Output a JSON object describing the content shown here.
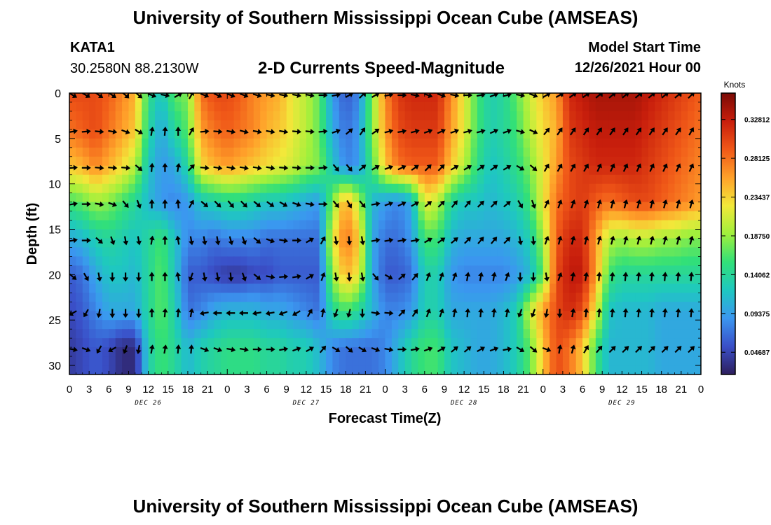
{
  "header": {
    "title": "University of Southern Mississippi Ocean Cube (AMSEAS)",
    "station": "KATA1",
    "coords": "30.2580N  88.2130W",
    "subtitle": "2-D Currents Speed-Magnitude",
    "model_start_label": "Model Start Time",
    "model_start_value": "12/26/2021 Hour 00"
  },
  "footer": {
    "title": "University of Southern Mississippi Ocean Cube (AMSEAS)"
  },
  "colors": {
    "colormap": [
      "#2d1e5c",
      "#3a4fc8",
      "#3b97f0",
      "#1ec8c0",
      "#32e078",
      "#a0f03c",
      "#f2e83a",
      "#ffa12a",
      "#f05818",
      "#c81e0c",
      "#7a0a05"
    ]
  },
  "chart_data": {
    "type": "heatmap",
    "title": "2-D Currents Speed-Magnitude",
    "xlabel": "Forecast Time(Z)",
    "ylabel": "Depth (ft)",
    "x_ticks": [
      "0",
      "3",
      "6",
      "9",
      "12",
      "15",
      "18",
      "21",
      "0",
      "3",
      "6",
      "9",
      "12",
      "15",
      "18",
      "21",
      "0",
      "3",
      "6",
      "9",
      "12",
      "15",
      "18",
      "21",
      "0",
      "3",
      "6",
      "9",
      "12",
      "15",
      "18",
      "21",
      "0"
    ],
    "day_labels": [
      "DEC 26",
      "DEC 27",
      "DEC 28",
      "DEC 29"
    ],
    "y_ticks": [
      "0",
      "5",
      "10",
      "15",
      "20",
      "25",
      "30"
    ],
    "ylim": [
      0,
      31
    ],
    "xlim_hours": [
      0,
      96
    ],
    "colorbar": {
      "label": "Knots",
      "range": [
        0.02,
        0.36
      ],
      "ticks": [
        "0.04687",
        "0.09375",
        "0.14062",
        "0.18750",
        "0.23437",
        "0.28125",
        "0.32812"
      ]
    },
    "vector_depths_ft": [
      0,
      4,
      8,
      12,
      16,
      20,
      24,
      28
    ],
    "vector_interval_hours": 2,
    "speed_knots_by_depth": [
      {
        "depth": 0,
        "values": [
          0.3,
          0.3,
          0.3,
          0.29,
          0.27,
          0.25,
          0.15,
          0.12,
          0.17,
          0.18,
          0.28,
          0.3,
          0.3,
          0.29,
          0.27,
          0.26,
          0.25,
          0.22,
          0.2,
          0.17,
          0.09,
          0.06,
          0.08,
          0.18,
          0.27,
          0.31,
          0.32,
          0.32,
          0.32,
          0.27,
          0.22,
          0.16,
          0.13,
          0.14,
          0.17,
          0.21,
          0.24,
          0.26,
          0.32,
          0.33,
          0.34,
          0.34,
          0.34,
          0.34,
          0.33,
          0.32,
          0.31,
          0.3,
          0.29
        ]
      },
      {
        "depth": 4,
        "values": [
          0.28,
          0.29,
          0.3,
          0.28,
          0.26,
          0.24,
          0.14,
          0.1,
          0.14,
          0.17,
          0.26,
          0.28,
          0.29,
          0.28,
          0.27,
          0.25,
          0.24,
          0.22,
          0.2,
          0.17,
          0.1,
          0.07,
          0.09,
          0.18,
          0.26,
          0.3,
          0.31,
          0.31,
          0.31,
          0.26,
          0.22,
          0.16,
          0.13,
          0.14,
          0.16,
          0.2,
          0.23,
          0.25,
          0.31,
          0.32,
          0.33,
          0.33,
          0.33,
          0.33,
          0.32,
          0.31,
          0.3,
          0.29,
          0.28
        ]
      },
      {
        "depth": 8,
        "values": [
          0.24,
          0.25,
          0.27,
          0.25,
          0.23,
          0.2,
          0.12,
          0.09,
          0.1,
          0.14,
          0.23,
          0.25,
          0.26,
          0.25,
          0.24,
          0.23,
          0.22,
          0.21,
          0.19,
          0.18,
          0.12,
          0.08,
          0.09,
          0.16,
          0.24,
          0.28,
          0.29,
          0.29,
          0.29,
          0.24,
          0.2,
          0.15,
          0.12,
          0.13,
          0.15,
          0.18,
          0.22,
          0.26,
          0.3,
          0.31,
          0.32,
          0.32,
          0.32,
          0.32,
          0.31,
          0.3,
          0.29,
          0.28,
          0.27
        ]
      },
      {
        "depth": 12,
        "values": [
          0.16,
          0.17,
          0.19,
          0.18,
          0.16,
          0.14,
          0.11,
          0.09,
          0.08,
          0.09,
          0.12,
          0.13,
          0.14,
          0.14,
          0.13,
          0.12,
          0.12,
          0.11,
          0.1,
          0.09,
          0.18,
          0.26,
          0.2,
          0.11,
          0.09,
          0.08,
          0.1,
          0.22,
          0.2,
          0.14,
          0.12,
          0.12,
          0.11,
          0.12,
          0.13,
          0.16,
          0.22,
          0.28,
          0.3,
          0.31,
          0.29,
          0.28,
          0.29,
          0.3,
          0.3,
          0.29,
          0.28,
          0.27,
          0.26
        ]
      },
      {
        "depth": 16,
        "values": [
          0.1,
          0.11,
          0.13,
          0.14,
          0.13,
          0.12,
          0.14,
          0.16,
          0.12,
          0.08,
          0.08,
          0.07,
          0.08,
          0.08,
          0.08,
          0.07,
          0.07,
          0.07,
          0.07,
          0.07,
          0.22,
          0.28,
          0.24,
          0.1,
          0.07,
          0.07,
          0.09,
          0.16,
          0.16,
          0.11,
          0.1,
          0.1,
          0.1,
          0.1,
          0.11,
          0.13,
          0.19,
          0.29,
          0.32,
          0.32,
          0.26,
          0.2,
          0.19,
          0.2,
          0.2,
          0.19,
          0.19,
          0.18,
          0.18
        ]
      },
      {
        "depth": 20,
        "values": [
          0.06,
          0.07,
          0.1,
          0.12,
          0.12,
          0.11,
          0.14,
          0.17,
          0.12,
          0.06,
          0.06,
          0.05,
          0.04,
          0.04,
          0.05,
          0.05,
          0.06,
          0.06,
          0.06,
          0.06,
          0.19,
          0.25,
          0.22,
          0.1,
          0.06,
          0.06,
          0.07,
          0.13,
          0.13,
          0.09,
          0.08,
          0.08,
          0.08,
          0.08,
          0.09,
          0.11,
          0.17,
          0.3,
          0.33,
          0.33,
          0.26,
          0.16,
          0.14,
          0.14,
          0.14,
          0.14,
          0.14,
          0.14,
          0.14
        ]
      },
      {
        "depth": 24,
        "values": [
          0.05,
          0.06,
          0.08,
          0.1,
          0.1,
          0.1,
          0.14,
          0.17,
          0.13,
          0.07,
          0.08,
          0.1,
          0.11,
          0.11,
          0.11,
          0.1,
          0.1,
          0.09,
          0.08,
          0.07,
          0.14,
          0.16,
          0.14,
          0.11,
          0.08,
          0.08,
          0.09,
          0.13,
          0.13,
          0.1,
          0.1,
          0.1,
          0.1,
          0.11,
          0.13,
          0.21,
          0.26,
          0.3,
          0.32,
          0.3,
          0.22,
          0.12,
          0.11,
          0.11,
          0.11,
          0.1,
          0.1,
          0.1,
          0.1
        ]
      },
      {
        "depth": 28,
        "values": [
          0.04,
          0.05,
          0.06,
          0.05,
          0.03,
          0.03,
          0.13,
          0.16,
          0.14,
          0.11,
          0.13,
          0.14,
          0.15,
          0.15,
          0.15,
          0.14,
          0.14,
          0.13,
          0.13,
          0.11,
          0.08,
          0.07,
          0.07,
          0.07,
          0.08,
          0.11,
          0.14,
          0.16,
          0.16,
          0.12,
          0.11,
          0.1,
          0.1,
          0.11,
          0.13,
          0.17,
          0.24,
          0.3,
          0.28,
          0.24,
          0.16,
          0.11,
          0.11,
          0.11,
          0.11,
          0.1,
          0.1,
          0.1,
          0.1
        ]
      },
      {
        "depth": 31,
        "values": [
          0.04,
          0.05,
          0.06,
          0.05,
          0.03,
          0.03,
          0.13,
          0.16,
          0.14,
          0.11,
          0.13,
          0.14,
          0.15,
          0.15,
          0.15,
          0.14,
          0.14,
          0.13,
          0.13,
          0.11,
          0.08,
          0.07,
          0.07,
          0.07,
          0.08,
          0.11,
          0.14,
          0.16,
          0.16,
          0.12,
          0.11,
          0.1,
          0.1,
          0.11,
          0.13,
          0.17,
          0.24,
          0.3,
          0.28,
          0.24,
          0.16,
          0.11,
          0.11,
          0.11,
          0.11,
          0.1,
          0.1,
          0.1,
          0.1
        ]
      }
    ],
    "direction_deg_by_depth": [
      {
        "depth": 0,
        "values": [
          120,
          120,
          125,
          125,
          130,
          130,
          110,
          100,
          60,
          30,
          110,
          115,
          110,
          110,
          105,
          100,
          100,
          100,
          100,
          90,
          80,
          60,
          45,
          60,
          80,
          90,
          100,
          110,
          110,
          100,
          90,
          80,
          70,
          75,
          100,
          110,
          60,
          60,
          55,
          55,
          50,
          50,
          50,
          50,
          50,
          50,
          50,
          45,
          45
        ]
      },
      {
        "depth": 4,
        "values": [
          80,
          85,
          95,
          100,
          110,
          120,
          10,
          5,
          0,
          30,
          85,
          95,
          100,
          105,
          100,
          100,
          100,
          95,
          95,
          85,
          70,
          50,
          35,
          55,
          75,
          80,
          75,
          70,
          65,
          70,
          75,
          75,
          65,
          70,
          105,
          115,
          40,
          35,
          35,
          35,
          35,
          35,
          35,
          35,
          35,
          35,
          35,
          30,
          30
        ]
      },
      {
        "depth": 8,
        "values": [
          85,
          90,
          95,
          95,
          95,
          130,
          5,
          0,
          10,
          45,
          95,
          100,
          100,
          100,
          100,
          100,
          95,
          95,
          90,
          85,
          140,
          140,
          50,
          60,
          70,
          65,
          55,
          45,
          45,
          60,
          60,
          55,
          55,
          60,
          120,
          130,
          30,
          30,
          30,
          30,
          25,
          25,
          25,
          25,
          25,
          25,
          25,
          25,
          25
        ]
      },
      {
        "depth": 12,
        "values": [
          80,
          90,
          100,
          110,
          140,
          160,
          0,
          0,
          355,
          30,
          130,
          135,
          140,
          135,
          130,
          125,
          120,
          110,
          100,
          90,
          140,
          150,
          140,
          80,
          70,
          65,
          60,
          50,
          45,
          40,
          40,
          45,
          45,
          50,
          150,
          160,
          25,
          20,
          20,
          20,
          15,
          15,
          15,
          15,
          15,
          15,
          15,
          15,
          15
        ]
      },
      {
        "depth": 16,
        "values": [
          80,
          90,
          130,
          160,
          170,
          170,
          10,
          0,
          350,
          170,
          170,
          170,
          165,
          160,
          130,
          110,
          100,
          90,
          60,
          30,
          170,
          175,
          170,
          80,
          80,
          80,
          80,
          60,
          55,
          50,
          45,
          40,
          40,
          45,
          170,
          175,
          20,
          15,
          15,
          15,
          15,
          15,
          15,
          15,
          15,
          15,
          15,
          15,
          15
        ]
      },
      {
        "depth": 20,
        "values": [
          130,
          150,
          170,
          180,
          180,
          180,
          0,
          0,
          350,
          200,
          170,
          170,
          175,
          160,
          130,
          100,
          85,
          80,
          60,
          20,
          170,
          175,
          170,
          140,
          120,
          50,
          40,
          20,
          20,
          20,
          10,
          10,
          10,
          20,
          180,
          180,
          170,
          20,
          10,
          10,
          5,
          5,
          5,
          5,
          5,
          5,
          5,
          5,
          5
        ]
      },
      {
        "depth": 24,
        "values": [
          240,
          210,
          190,
          180,
          180,
          180,
          0,
          5,
          5,
          10,
          260,
          270,
          270,
          270,
          260,
          260,
          250,
          240,
          30,
          10,
          200,
          195,
          180,
          100,
          95,
          45,
          35,
          20,
          20,
          10,
          5,
          5,
          5,
          10,
          200,
          200,
          190,
          180,
          10,
          5,
          5,
          5,
          5,
          5,
          5,
          5,
          5,
          5,
          5
        ]
      },
      {
        "depth": 28,
        "values": [
          100,
          110,
          210,
          240,
          200,
          190,
          10,
          10,
          5,
          5,
          110,
          110,
          100,
          100,
          90,
          90,
          80,
          70,
          60,
          40,
          120,
          130,
          120,
          110,
          100,
          90,
          80,
          70,
          60,
          50,
          50,
          60,
          70,
          80,
          120,
          130,
          110,
          10,
          15,
          30,
          40,
          45,
          45,
          45,
          45,
          45,
          45,
          45,
          45
        ]
      }
    ]
  }
}
